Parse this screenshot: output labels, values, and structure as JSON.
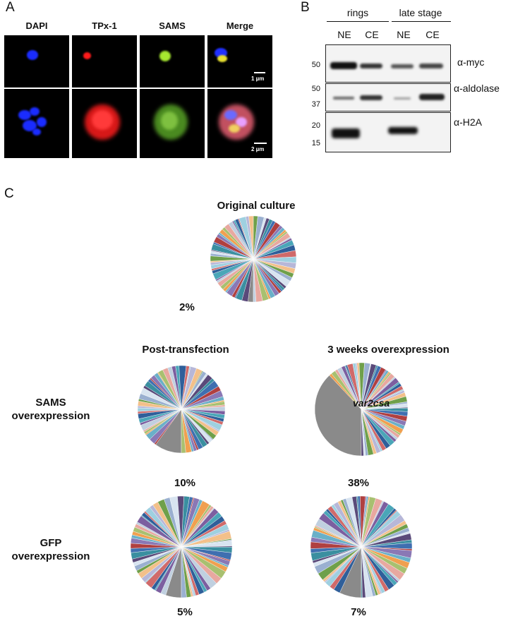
{
  "panel_a": {
    "label": "A",
    "columns": [
      "DAPI",
      "TPx-1",
      "SAMS",
      "Merge"
    ],
    "scale_bars": [
      "1 µm",
      "2 µm"
    ],
    "channel_colors": {
      "dapi": "#1a2cff",
      "tpx": "#ff1a1a",
      "sams": "#8ee02a"
    }
  },
  "panel_b": {
    "label": "B",
    "groups": [
      "rings",
      "late stage"
    ],
    "lanes": [
      "NE",
      "CE",
      "NE",
      "CE"
    ],
    "blots": [
      {
        "antibody": "α-myc",
        "markers": [
          "50"
        ]
      },
      {
        "antibody": "α-aldolase",
        "markers": [
          "50",
          "37"
        ]
      },
      {
        "antibody": "α-H2A",
        "markers": [
          "20",
          "15"
        ]
      }
    ]
  },
  "panel_c": {
    "label": "C",
    "original_title": "Original culture",
    "column_titles": [
      "Post-transfection",
      "3 weeks overexpression"
    ],
    "row_labels": [
      "SAMS overexpression",
      "GFP overexpression"
    ],
    "dominant_label": "var2csa"
  },
  "chart_data": [
    {
      "type": "pie",
      "title": "Original culture",
      "largest_slice_percent": 2,
      "largest_slice_label": "2%"
    },
    {
      "type": "pie",
      "title": "Post-transfection",
      "row": "SAMS overexpression",
      "largest_slice_percent": 10,
      "largest_slice_label": "10%"
    },
    {
      "type": "pie",
      "title": "3 weeks overexpression",
      "row": "SAMS overexpression",
      "largest_slice_percent": 38,
      "largest_slice_label": "38%",
      "annotation": "var2csa"
    },
    {
      "type": "pie",
      "title": "Post-transfection",
      "row": "GFP overexpression",
      "largest_slice_percent": 5,
      "largest_slice_label": "5%"
    },
    {
      "type": "pie",
      "title": "3 weeks overexpression",
      "row": "GFP overexpression",
      "largest_slice_percent": 7,
      "largest_slice_label": "7%"
    }
  ],
  "palette": [
    "#5a4a7a",
    "#3a8fa0",
    "#3f6fb0",
    "#b04040",
    "#8a78b5",
    "#6ab0c8",
    "#f0a050",
    "#a8c070",
    "#e8a8a0",
    "#c0d0e0",
    "#7c5fa0",
    "#4aa6b8",
    "#2f5f9a",
    "#d06a6a",
    "#9fd0e0",
    "#b7b7d8",
    "#f3c08a",
    "#6fa04a",
    "#9ab0d0",
    "#d8e4f0"
  ]
}
